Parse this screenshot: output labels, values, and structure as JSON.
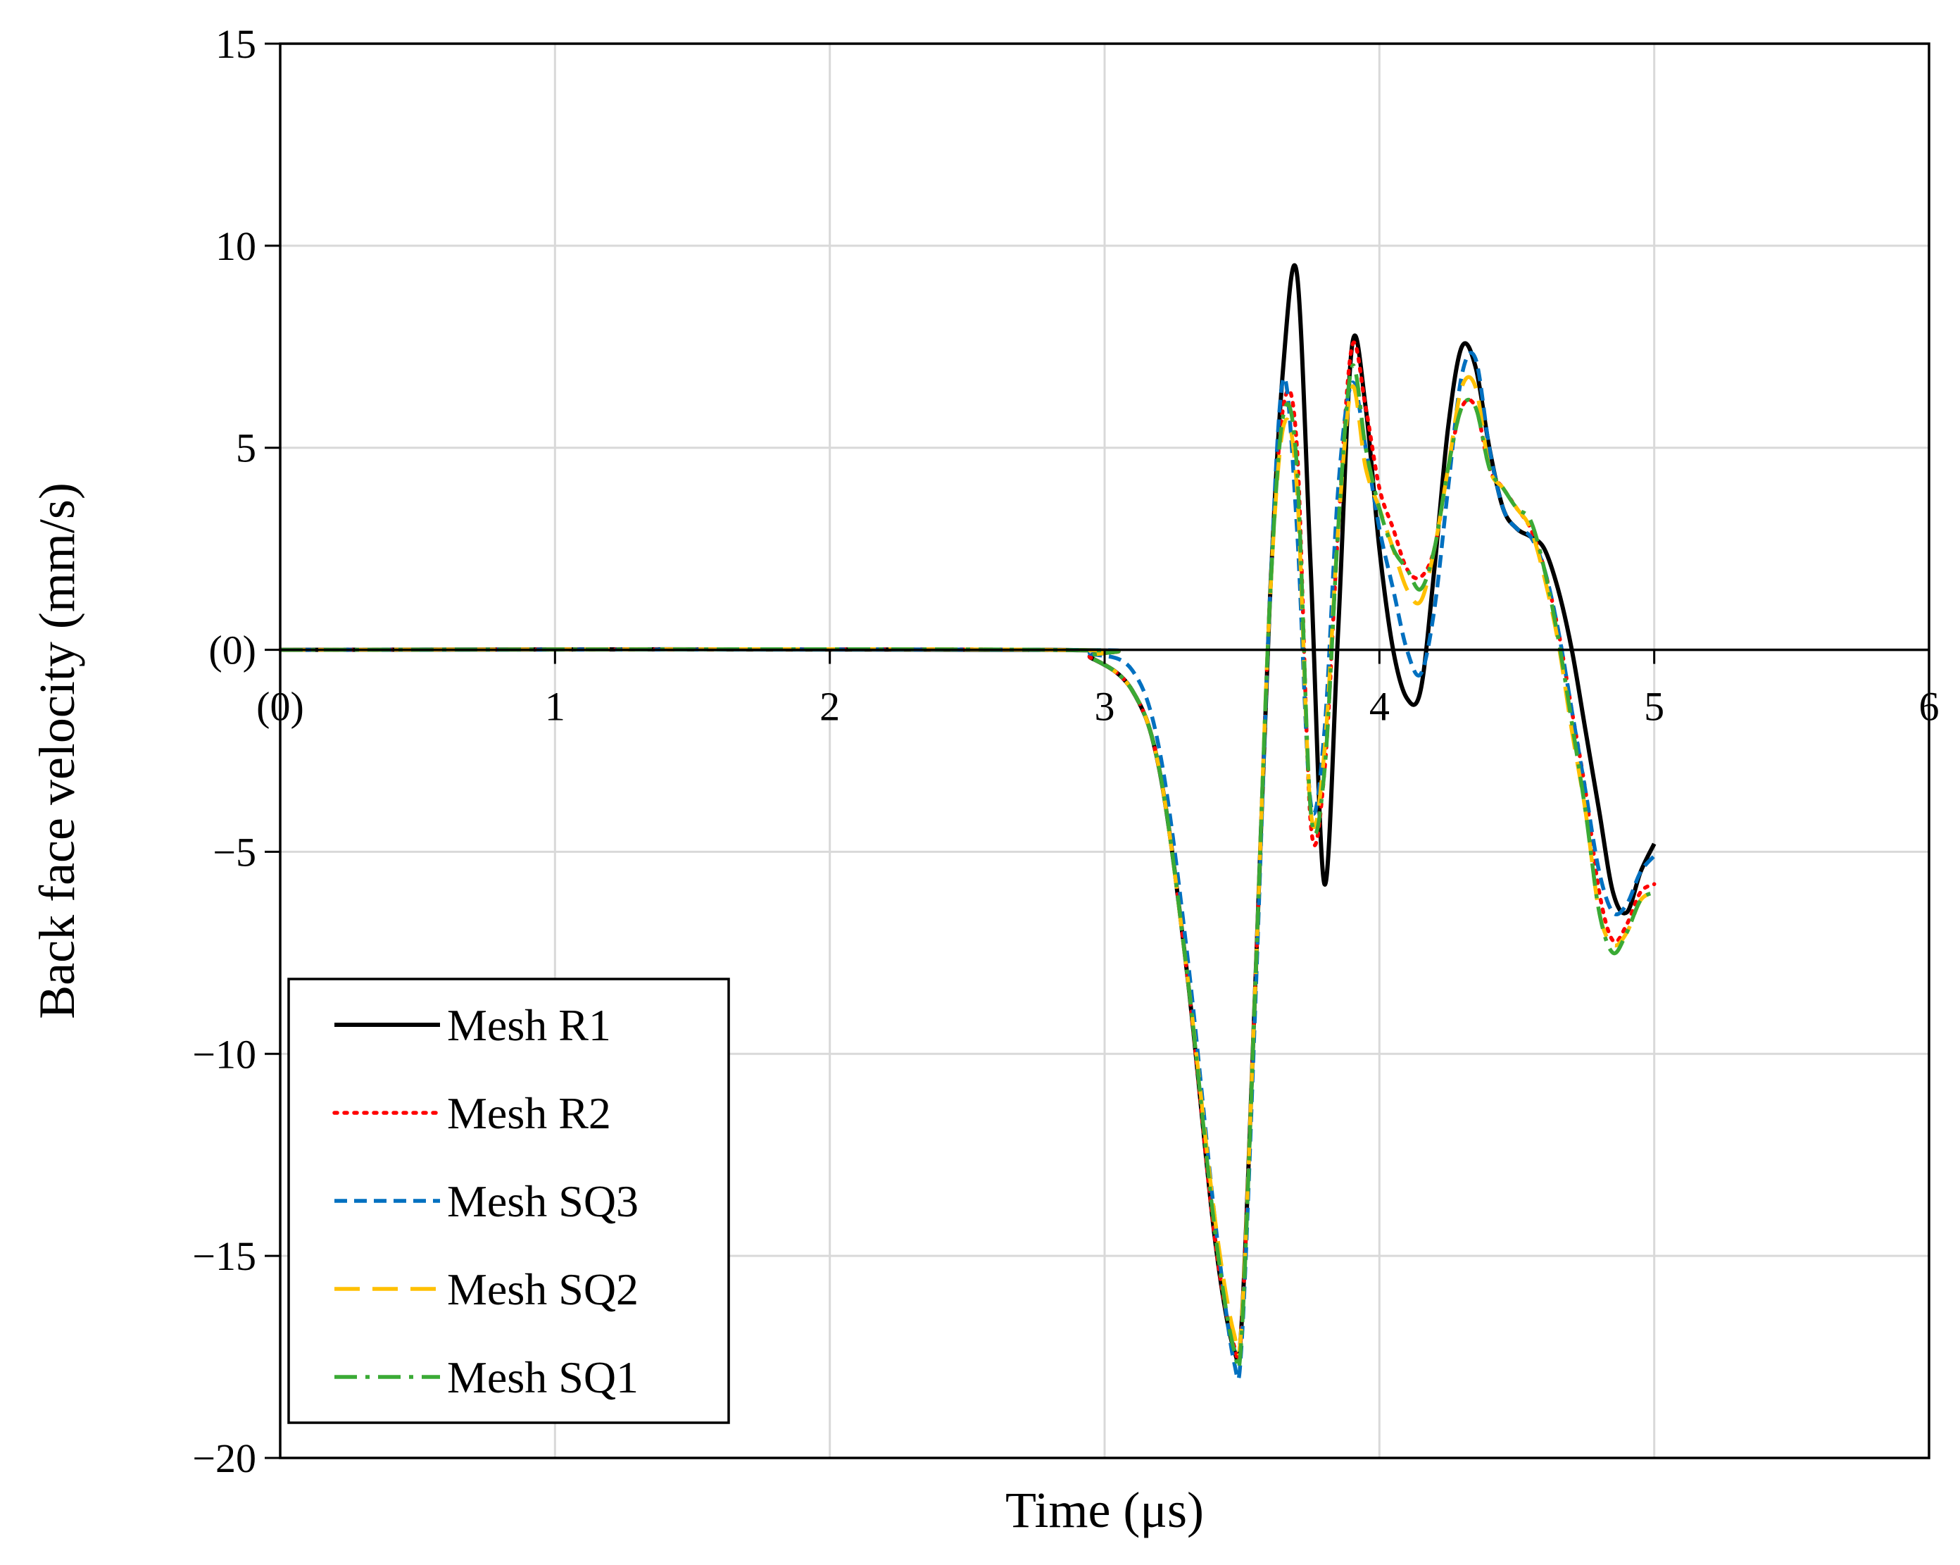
{
  "chart_data": {
    "type": "line",
    "title": "",
    "xlabel": "Time (μs)",
    "ylabel": "Back face velocity (mm/s)",
    "xlim": [
      0,
      6
    ],
    "ylim": [
      -20,
      15
    ],
    "grid": true,
    "x_ticks": [
      0,
      1,
      2,
      3,
      4,
      5,
      6
    ],
    "y_ticks": [
      -20,
      -15,
      -10,
      -5,
      0,
      5,
      10,
      15
    ],
    "x_tick_labels": [
      "(0)",
      "1",
      "2",
      "3",
      "4",
      "5",
      "6"
    ],
    "y_tick_labels": [
      "−20",
      "−15",
      "−10",
      "−5",
      "(0)",
      "5",
      "10",
      "15"
    ],
    "legend_position": "bottom-left",
    "series": [
      {
        "name": "Mesh R1",
        "color": "#000000",
        "dash": "solid",
        "x": [
          0,
          2.8,
          2.95,
          3.1,
          3.2,
          3.3,
          3.4,
          3.47,
          3.5,
          3.55,
          3.6,
          3.65,
          3.7,
          3.75,
          3.8,
          3.85,
          3.9,
          3.95,
          4.0,
          4.05,
          4.1,
          4.15,
          4.2,
          4.25,
          4.3,
          4.35,
          4.4,
          4.45,
          4.5,
          4.55,
          4.6,
          4.65,
          4.7,
          4.75,
          4.8,
          4.85,
          4.9,
          4.95,
          5.0
        ],
        "y": [
          0,
          0,
          -0.2,
          -1.0,
          -3.0,
          -8.0,
          -14.5,
          -17.3,
          -16.5,
          -8.0,
          1.0,
          7.0,
          9.3,
          2.0,
          -5.8,
          0.5,
          7.5,
          6.0,
          2.5,
          0.0,
          -1.2,
          -1.0,
          2.0,
          5.5,
          7.5,
          7.0,
          5.0,
          3.5,
          3.0,
          2.8,
          2.5,
          1.5,
          0.0,
          -2.0,
          -4.0,
          -6.0,
          -6.5,
          -5.5,
          -4.8
        ]
      },
      {
        "name": "Mesh R2",
        "color": "#ff0000",
        "dash": "dotted",
        "x": [
          0,
          2.8,
          2.95,
          3.1,
          3.2,
          3.3,
          3.4,
          3.47,
          3.5,
          3.55,
          3.6,
          3.65,
          3.7,
          3.75,
          3.8,
          3.85,
          3.9,
          3.95,
          4.0,
          4.05,
          4.1,
          4.15,
          4.2,
          4.25,
          4.3,
          4.35,
          4.4,
          4.45,
          4.5,
          4.55,
          4.6,
          4.65,
          4.7,
          4.75,
          4.8,
          4.85,
          4.9,
          4.95,
          5.0
        ],
        "y": [
          0,
          0,
          -0.2,
          -1.0,
          -3.0,
          -8.0,
          -14.5,
          -17.2,
          -16.6,
          -8.0,
          1.0,
          6.0,
          5.0,
          -4.3,
          -3.0,
          3.0,
          7.5,
          6.0,
          4.0,
          3.0,
          2.0,
          1.8,
          2.5,
          4.5,
          6.0,
          6.0,
          4.5,
          4.0,
          3.5,
          3.0,
          2.0,
          0.5,
          -1.5,
          -3.5,
          -6.0,
          -7.2,
          -6.8,
          -6.0,
          -5.8
        ]
      },
      {
        "name": "Mesh SQ3",
        "color": "#0070c0",
        "dash": "short-dash",
        "x": [
          0,
          2.8,
          2.95,
          3.1,
          3.2,
          3.3,
          3.4,
          3.47,
          3.5,
          3.55,
          3.6,
          3.65,
          3.7,
          3.75,
          3.8,
          3.85,
          3.9,
          3.95,
          4.0,
          4.05,
          4.1,
          4.15,
          4.2,
          4.25,
          4.3,
          4.35,
          4.4,
          4.45,
          4.5,
          4.55,
          4.6,
          4.65,
          4.7,
          4.75,
          4.8,
          4.85,
          4.9,
          4.95,
          5.0
        ],
        "y": [
          0,
          0,
          -0.1,
          -0.5,
          -2.5,
          -7.5,
          -14.0,
          -17.6,
          -17.0,
          -8.5,
          1.0,
          6.7,
          3.0,
          -3.8,
          -2.0,
          4.0,
          6.6,
          5.0,
          3.0,
          1.5,
          0.0,
          -0.6,
          1.0,
          4.0,
          6.8,
          7.2,
          5.0,
          3.5,
          3.0,
          2.8,
          2.0,
          0.5,
          -1.5,
          -3.5,
          -5.5,
          -6.5,
          -6.3,
          -5.5,
          -5.1
        ]
      },
      {
        "name": "Mesh SQ2",
        "color": "#ffc000",
        "dash": "long-dash",
        "x": [
          0,
          2.8,
          2.95,
          3.1,
          3.2,
          3.3,
          3.4,
          3.47,
          3.5,
          3.55,
          3.6,
          3.65,
          3.7,
          3.75,
          3.8,
          3.85,
          3.9,
          3.95,
          4.0,
          4.05,
          4.1,
          4.15,
          4.2,
          4.25,
          4.3,
          4.35,
          4.4,
          4.45,
          4.5,
          4.55,
          4.6,
          4.65,
          4.7,
          4.75,
          4.8,
          4.85,
          4.9,
          4.95,
          5.0
        ],
        "y": [
          0,
          0,
          -0.2,
          -1.0,
          -3.0,
          -8.0,
          -14.0,
          -16.9,
          -16.5,
          -8.0,
          1.0,
          5.5,
          4.0,
          -4.0,
          -2.5,
          3.0,
          6.5,
          4.5,
          3.5,
          2.5,
          1.5,
          1.2,
          2.5,
          4.5,
          6.5,
          6.5,
          4.5,
          4.0,
          3.5,
          3.0,
          1.8,
          0.2,
          -2.0,
          -4.0,
          -6.5,
          -7.3,
          -7.0,
          -6.2,
          -6.0
        ]
      },
      {
        "name": "Mesh SQ1",
        "color": "#3aaa35",
        "dash": "dash-dot",
        "x": [
          0,
          2.8,
          2.95,
          3.1,
          3.2,
          3.3,
          3.4,
          3.47,
          3.5,
          3.55,
          3.6,
          3.65,
          3.7,
          3.75,
          3.8,
          3.85,
          3.9,
          3.95,
          4.0,
          4.05,
          4.1,
          4.15,
          4.2,
          4.25,
          4.3,
          4.35,
          4.4,
          4.45,
          4.5,
          4.55,
          4.6,
          4.65,
          4.7,
          4.75,
          4.8,
          4.85,
          4.9,
          4.95,
          5.0
        ],
        "y": [
          0,
          0,
          -0.2,
          -1.0,
          -3.0,
          -8.0,
          -14.3,
          -17.3,
          -16.8,
          -8.0,
          1.0,
          5.8,
          4.5,
          -4.0,
          -3.0,
          3.0,
          7.0,
          5.0,
          3.5,
          2.5,
          2.0,
          1.5,
          2.5,
          4.5,
          6.0,
          6.0,
          4.5,
          4.0,
          3.5,
          3.2,
          2.0,
          0.3,
          -1.8,
          -4.0,
          -6.5,
          -7.5,
          -7.0,
          -6.2,
          -6.0
        ]
      }
    ]
  }
}
